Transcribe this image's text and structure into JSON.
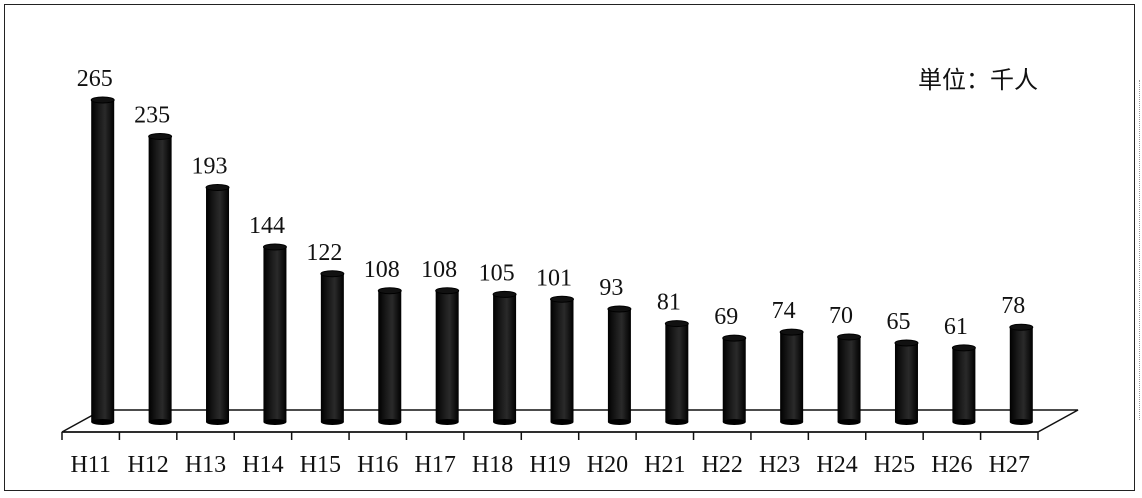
{
  "chart_data": {
    "type": "bar",
    "unit_label": "単位：千人",
    "categories": [
      "H11",
      "H12",
      "H13",
      "H14",
      "H15",
      "H16",
      "H17",
      "H18",
      "H19",
      "H20",
      "H21",
      "H22",
      "H23",
      "H24",
      "H25",
      "H26",
      "H27"
    ],
    "values": [
      265,
      235,
      193,
      144,
      122,
      108,
      108,
      105,
      101,
      93,
      81,
      69,
      74,
      70,
      65,
      61,
      78
    ],
    "value_labels": [
      "265",
      "235",
      "193",
      "144",
      "122",
      "108",
      "108",
      "105",
      "101",
      "93",
      "81",
      "69",
      "74",
      "70",
      "65",
      "61",
      "78"
    ],
    "ylim": [
      0,
      265
    ],
    "grid": false,
    "legend": "none",
    "bar_color": "#0a0a0a"
  }
}
